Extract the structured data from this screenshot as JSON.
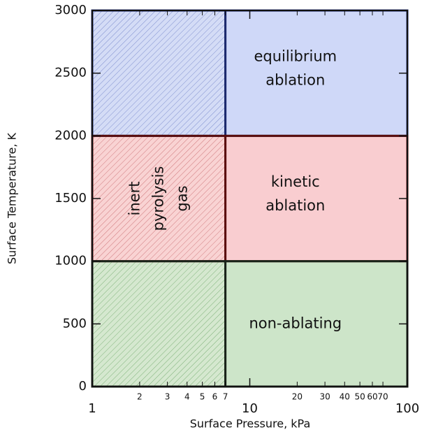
{
  "chart_data": {
    "type": "region",
    "xlabel": "Surface Pressure, kPa",
    "ylabel": "Surface Temperature, K",
    "xscale": "log",
    "xlim": [
      1,
      100
    ],
    "ylim": [
      0,
      3000
    ],
    "xticks": [
      1,
      10,
      100
    ],
    "xminorticks": [
      2,
      3,
      4,
      5,
      6,
      7,
      20,
      30,
      40,
      50,
      60,
      70
    ],
    "yticks": [
      0,
      500,
      1000,
      1500,
      2000,
      2500,
      3000
    ],
    "regions": [
      {
        "x": [
          1,
          7
        ],
        "y": [
          2000,
          3000
        ],
        "color": "#d4dcf6",
        "hatch": "#7f8fcf",
        "edge": "#1c2a6e"
      },
      {
        "x": [
          7,
          100
        ],
        "y": [
          2000,
          3000
        ],
        "color": "#cfd8f8",
        "edge": "#1c2a6e",
        "label": [
          "equilibrium",
          "ablation"
        ]
      },
      {
        "x": [
          1,
          7
        ],
        "y": [
          1000,
          2000
        ],
        "color": "#f9d3d3",
        "hatch": "#d07a7e",
        "edge": "#5a0c0c"
      },
      {
        "x": [
          7,
          100
        ],
        "y": [
          1000,
          2000
        ],
        "color": "#f9cdd0",
        "edge": "#5a0c0c",
        "label": [
          "kinetic",
          "ablation"
        ]
      },
      {
        "x": [
          1,
          7
        ],
        "y": [
          0,
          1000
        ],
        "color": "#d5e8cf",
        "hatch": "#7fb27a",
        "edge": "#1a241a"
      },
      {
        "x": [
          7,
          100
        ],
        "y": [
          0,
          1000
        ],
        "color": "#cde5c9",
        "edge": "#1a241a",
        "label": [
          "non-ablating"
        ]
      }
    ],
    "annotation": [
      "inert",
      "pyrolysis",
      "gas"
    ]
  }
}
